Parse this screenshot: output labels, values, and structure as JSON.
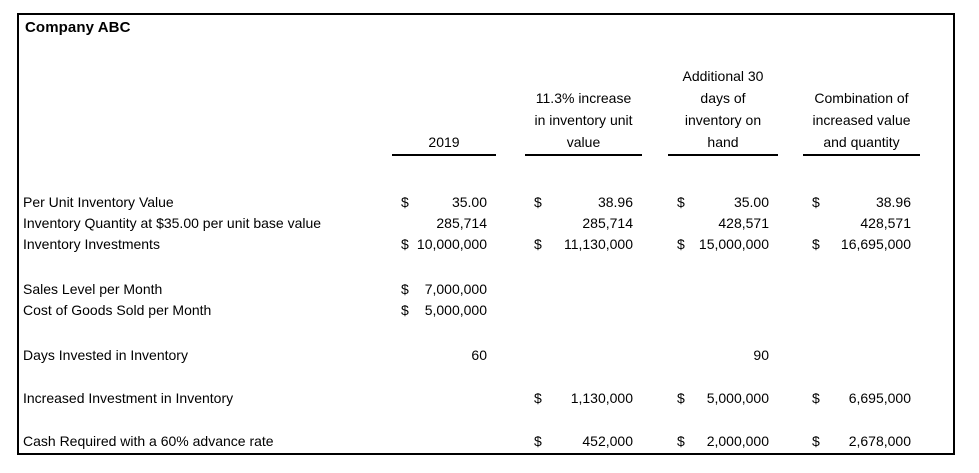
{
  "title": "Company ABC",
  "colors": {
    "background": "#ffffff",
    "border": "#000000",
    "text": "#000000"
  },
  "table": {
    "column_headers": [
      "2019",
      "11.3% increase\nin inventory unit\nvalue",
      "Additional 30\ndays of\ninventory on\nhand",
      "Combination of\nincreased value\nand quantity"
    ],
    "rows": [
      {
        "label": "Per Unit Inventory Value",
        "cells": [
          {
            "d": "$",
            "v": "35.00"
          },
          {
            "d": "$",
            "v": "38.96"
          },
          {
            "d": "$",
            "v": "35.00"
          },
          {
            "d": "$",
            "v": "38.96"
          }
        ]
      },
      {
        "label": "Inventory Quantity at $35.00 per unit base value",
        "cells": [
          {
            "d": "",
            "v": "285,714"
          },
          {
            "d": "",
            "v": "285,714"
          },
          {
            "d": "",
            "v": "428,571"
          },
          {
            "d": "",
            "v": "428,571"
          }
        ]
      },
      {
        "label": "Inventory Investments",
        "cells": [
          {
            "d": "$",
            "v": "10,000,000"
          },
          {
            "d": "$",
            "v": "11,130,000"
          },
          {
            "d": "$",
            "v": "15,000,000"
          },
          {
            "d": "$",
            "v": "16,695,000"
          }
        ]
      },
      {
        "label": "Sales Level per Month",
        "cells": [
          {
            "d": "$",
            "v": "7,000,000"
          },
          {
            "d": "",
            "v": ""
          },
          {
            "d": "",
            "v": ""
          },
          {
            "d": "",
            "v": ""
          }
        ]
      },
      {
        "label": "Cost of Goods Sold per Month",
        "cells": [
          {
            "d": "$",
            "v": "5,000,000"
          },
          {
            "d": "",
            "v": ""
          },
          {
            "d": "",
            "v": ""
          },
          {
            "d": "",
            "v": ""
          }
        ]
      },
      {
        "label": "Days Invested in Inventory",
        "cells": [
          {
            "d": "",
            "v": "60"
          },
          {
            "d": "",
            "v": ""
          },
          {
            "d": "",
            "v": "90"
          },
          {
            "d": "",
            "v": ""
          }
        ]
      },
      {
        "label": "Increased Investment in Inventory",
        "cells": [
          {
            "d": "",
            "v": ""
          },
          {
            "d": "$",
            "v": "1,130,000"
          },
          {
            "d": "$",
            "v": "5,000,000"
          },
          {
            "d": "$",
            "v": "6,695,000"
          }
        ]
      },
      {
        "label": "Cash Required with a 60% advance rate",
        "cells": [
          {
            "d": "",
            "v": ""
          },
          {
            "d": "$",
            "v": "452,000"
          },
          {
            "d": "$",
            "v": "2,000,000"
          },
          {
            "d": "$",
            "v": "2,678,000"
          }
        ]
      }
    ]
  }
}
